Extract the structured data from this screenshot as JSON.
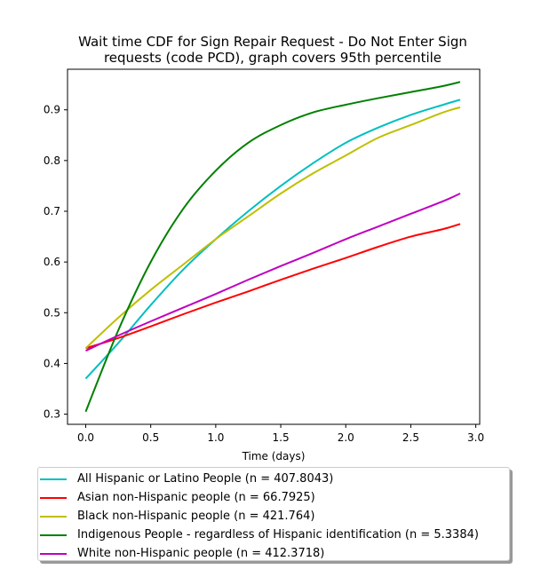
{
  "chart_data": {
    "type": "line",
    "title": "Wait time CDF for Sign Repair Request - Do Not Enter Sign\nrequests (code PCD), graph covers 95th percentile",
    "xlabel": "Time (days)",
    "ylabel": "",
    "xlim": [
      -0.14,
      3.03
    ],
    "ylim": [
      0.28,
      0.98
    ],
    "xticks": [
      "0.0",
      "0.5",
      "1.0",
      "1.5",
      "2.0",
      "2.5",
      "3.0"
    ],
    "yticks": [
      "0.3",
      "0.4",
      "0.5",
      "0.6",
      "0.7",
      "0.8",
      "0.9"
    ],
    "grid": false,
    "legend_position": "below",
    "x": [
      0.0,
      0.25,
      0.5,
      0.75,
      1.0,
      1.25,
      1.5,
      1.75,
      2.0,
      2.25,
      2.5,
      2.75,
      2.88
    ],
    "series": [
      {
        "name": "All Hispanic or Latino People (n = 407.8043)",
        "color": "#00bfbf",
        "values": [
          0.37,
          0.44,
          0.515,
          0.585,
          0.645,
          0.7,
          0.75,
          0.795,
          0.835,
          0.865,
          0.89,
          0.91,
          0.92
        ]
      },
      {
        "name": "Asian non-Hispanic people (n = 66.7925)",
        "color": "#ff0000",
        "values": [
          0.43,
          0.45,
          0.473,
          0.497,
          0.52,
          0.542,
          0.565,
          0.587,
          0.608,
          0.63,
          0.65,
          0.665,
          0.675
        ]
      },
      {
        "name": "Black non-Hispanic people (n = 421.764)",
        "color": "#bfbf00",
        "values": [
          0.43,
          0.49,
          0.545,
          0.595,
          0.645,
          0.69,
          0.735,
          0.775,
          0.81,
          0.845,
          0.87,
          0.895,
          0.905
        ]
      },
      {
        "name": "Indigenous People - regardless of Hispanic identification (n = 5.3384)",
        "color": "#008000",
        "values": [
          0.305,
          0.465,
          0.6,
          0.705,
          0.78,
          0.835,
          0.87,
          0.895,
          0.91,
          0.923,
          0.935,
          0.947,
          0.955
        ]
      },
      {
        "name": "White non-Hispanic people (n = 412.3718)",
        "color": "#bf00bf",
        "values": [
          0.425,
          0.455,
          0.483,
          0.51,
          0.537,
          0.565,
          0.592,
          0.618,
          0.645,
          0.67,
          0.695,
          0.72,
          0.735
        ]
      }
    ]
  }
}
